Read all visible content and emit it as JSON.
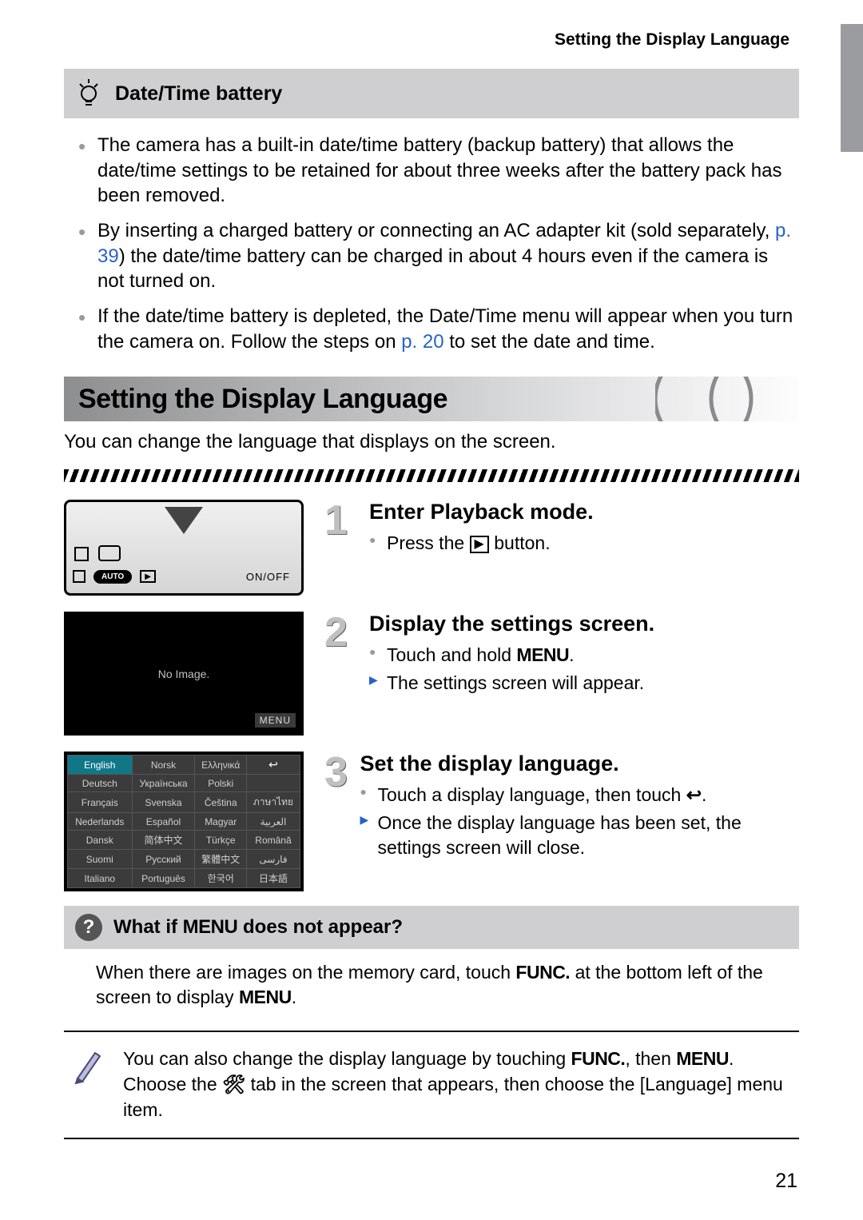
{
  "colors": {
    "link": "#2763c7",
    "gray_bullet": "#9a9a9a",
    "tip_bg": "#cfcfd1",
    "side_tab": "#9b9ca0"
  },
  "header": {
    "title": "Setting the Display Language"
  },
  "tip": {
    "title": "Date/Time battery",
    "bullets": [
      {
        "pre": "The camera has a built-in date/time battery (backup battery) that allows the date/time settings to be retained for about three weeks after the battery pack has been removed."
      },
      {
        "pre": "By inserting a charged battery or connecting an AC adapter kit (sold separately, ",
        "link": "p. 39",
        "post": ") the date/time battery can be charged in about 4 hours even if the camera is not turned on."
      },
      {
        "pre": "If the date/time battery is depleted, the Date/Time menu will appear when you turn the camera on. Follow the steps on ",
        "link": "p. 20",
        "post": " to set the date and time."
      }
    ]
  },
  "section": {
    "title": "Setting the Display Language",
    "intro": "You can change the language that displays on the screen."
  },
  "camera_labels": {
    "auto": "AUTO",
    "onoff": "ON/OFF",
    "play": "▶"
  },
  "screen": {
    "no_image": "No Image.",
    "menu": "MENU"
  },
  "steps": [
    {
      "num": "1",
      "title": "Enter Playback mode.",
      "line1_pre": "Press the ",
      "line1_post": " button.",
      "play_glyph": "▶"
    },
    {
      "num": "2",
      "title": "Display the settings screen.",
      "line1_pre": "Touch and hold ",
      "menu": "MENU",
      "line1_post": ".",
      "line2": "The settings screen will appear."
    },
    {
      "num": "3",
      "title": "Set the display language.",
      "line1_pre": "Touch a display language, then touch ",
      "back": "↩",
      "line1_post": ".",
      "line2": "Once the display language has been set, the settings screen will close."
    }
  ],
  "lang_grid": {
    "selected": "English",
    "rows": [
      [
        "English",
        "Norsk",
        "Ελληνικά",
        "↩"
      ],
      [
        "Deutsch",
        "Українська",
        "Polski",
        ""
      ],
      [
        "Français",
        "Svenska",
        "Čeština",
        "ภาษาไทย"
      ],
      [
        "Nederlands",
        "Español",
        "Magyar",
        "العربية"
      ],
      [
        "Dansk",
        "简体中文",
        "Türkçe",
        "Română"
      ],
      [
        "Suomi",
        "Русский",
        "繁體中文",
        "فارسی"
      ],
      [
        "Italiano",
        "Português",
        "한국어",
        "日本語"
      ]
    ]
  },
  "q_box": {
    "title_pre": "What if ",
    "title_mid": "MENU",
    "title_post": " does not appear?",
    "body_pre": "When there are images on the memory card, touch ",
    "func": "FUNC.",
    "body_mid": " at the bottom left of the screen to display ",
    "menu": "MENU",
    "body_post": "."
  },
  "note": {
    "l1_pre": "You can also change the display language by touching ",
    "func": "FUNC.",
    "l1_mid": ", then ",
    "menu": "MENU",
    "l2_pre": ". Choose the ",
    "wrench": "🛠",
    "l2_post": " tab in the screen that appears, then choose the [Language] menu item."
  },
  "page_number": "21"
}
